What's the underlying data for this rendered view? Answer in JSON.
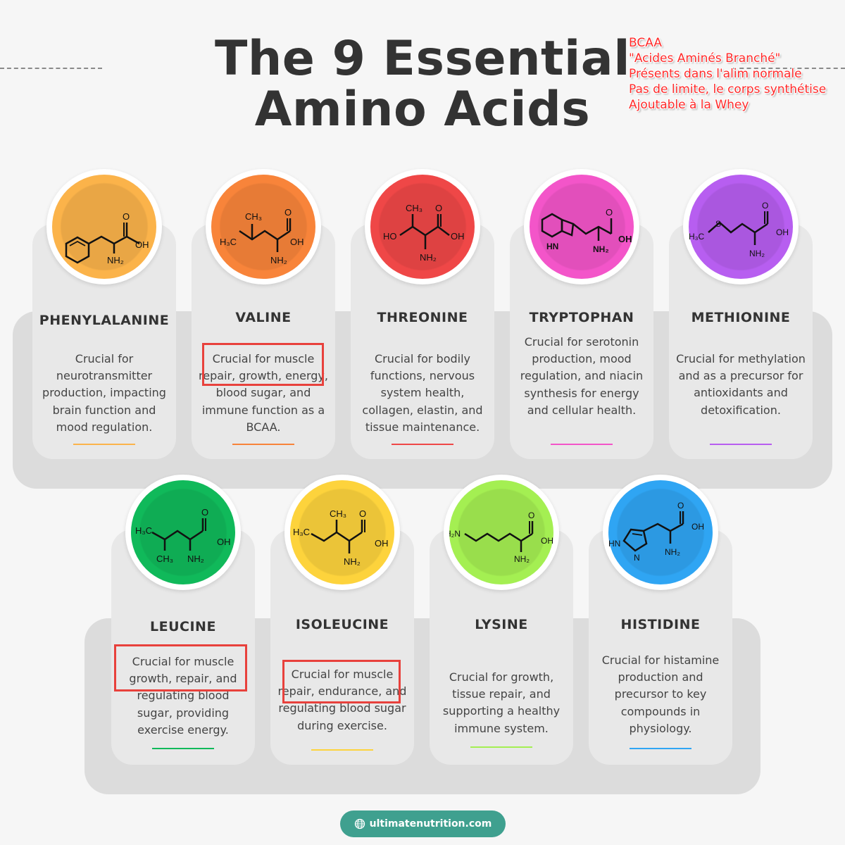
{
  "title_line1": "The 9 Essential",
  "title_line2": "Amino Acids",
  "note": [
    "BCAA",
    "\"Acides Aminés Branché\"",
    "Présents dans l'alim normale",
    "Pas de limite, le corps synthétise",
    "Ajoutable à la Whey"
  ],
  "amino_acids": [
    {
      "name": "PHENYLALANINE",
      "description": "Crucial for neurotransmitter production, impacting brain function and mood regulation.",
      "color": "#fbb34a",
      "molecule_labels": [
        "O",
        "OH",
        "NH₂"
      ]
    },
    {
      "name": "VALINE",
      "description": "Crucial for muscle repair, growth, energy, blood sugar, and immune function as a BCAA.",
      "color": "#f8843a",
      "molecule_labels": [
        "CH₃",
        "O",
        "H₃C",
        "OH",
        "NH₂"
      ]
    },
    {
      "name": "THREONINE",
      "description": "Crucial for bodily functions, nervous system health, collagen, elastin, and tissue maintenance.",
      "color": "#ef4747",
      "molecule_labels": [
        "CH₃",
        "O",
        "HO",
        "OH",
        "NH₂"
      ]
    },
    {
      "name": "TRYPTOPHAN",
      "description": "Crucial for serotonin production, mood regulation, and niacin synthesis for energy and cellular health.",
      "color": "#f355c9",
      "molecule_labels": [
        "O",
        "OH",
        "HN",
        "NH₂"
      ]
    },
    {
      "name": "METHIONINE",
      "description": "Crucial for methylation and as a precursor for antioxidants and detoxification.",
      "color": "#b75ef0",
      "molecule_labels": [
        "S",
        "H₃C",
        "O",
        "OH",
        "NH₂"
      ]
    },
    {
      "name": "LEUCINE",
      "description": "Crucial for muscle growth, repair, and regulating blood sugar, providing exercise energy.",
      "color": "#10b95a",
      "molecule_labels": [
        "H₃C",
        "O",
        "OH",
        "CH₃",
        "NH₂"
      ]
    },
    {
      "name": "ISOLEUCINE",
      "description": "Crucial for muscle repair, endurance, and regulating blood sugar during exercise.",
      "color": "#fdd33c",
      "molecule_labels": [
        "CH₃",
        "O",
        "H₃C",
        "OH",
        "NH₂"
      ]
    },
    {
      "name": "LYSINE",
      "description": "Crucial for growth, tissue repair, and supporting a healthy immune system.",
      "color": "#a4ef52",
      "molecule_labels": [
        "H₂N",
        "O",
        "OH",
        "NH₂"
      ]
    },
    {
      "name": "HISTIDINE",
      "description": "Crucial for histamine production and precursor to key compounds in physiology.",
      "color": "#2fa5f3",
      "molecule_labels": [
        "O",
        "OH",
        "HN",
        "N",
        "NH₂"
      ]
    }
  ],
  "footer": {
    "website": "ultimatenutrition.com",
    "icon": "globe-icon"
  }
}
